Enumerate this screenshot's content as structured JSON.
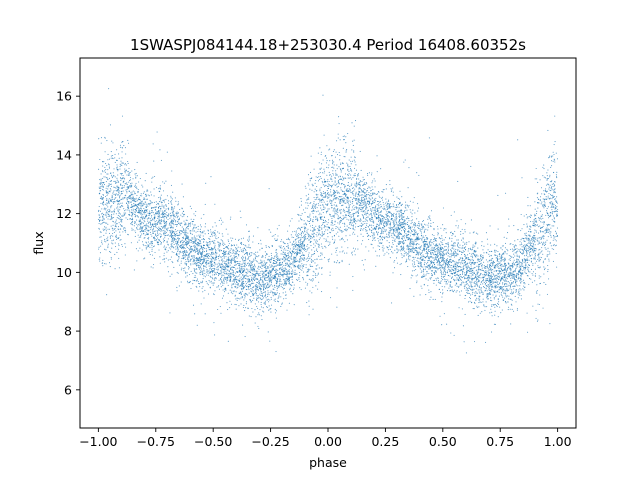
{
  "chart_data": {
    "type": "scatter",
    "title": "1SWASPJ084144.18+253030.4 Period 16408.60352s",
    "xlabel": "phase",
    "ylabel": "flux",
    "xlim": [
      -1.08,
      1.08
    ],
    "ylim": [
      4.7,
      17.3
    ],
    "xticks": [
      -1.0,
      -0.75,
      -0.5,
      -0.25,
      0.0,
      0.25,
      0.5,
      0.75,
      1.0
    ],
    "xtick_labels": [
      "−1.00",
      "−0.75",
      "−0.50",
      "−0.25",
      "0.00",
      "0.25",
      "0.50",
      "0.75",
      "1.00"
    ],
    "yticks": [
      6,
      8,
      10,
      12,
      14,
      16
    ],
    "ytick_labels": [
      "6",
      "8",
      "10",
      "12",
      "14",
      "16"
    ],
    "grid": false,
    "legend": "none",
    "marker_color": "#1f77b4",
    "series": [
      {
        "description_points": [
          {
            "phase": -1.0,
            "flux": 12.4
          },
          {
            "phase": -0.9,
            "flux": 12.5
          },
          {
            "phase": -0.75,
            "flux": 11.7
          },
          {
            "phase": -0.5,
            "flux": 10.4
          },
          {
            "phase": -0.3,
            "flux": 9.8
          },
          {
            "phase": -0.2,
            "flux": 10.0
          },
          {
            "phase": -0.1,
            "flux": 11.0
          },
          {
            "phase": 0.0,
            "flux": 12.4
          },
          {
            "phase": 0.1,
            "flux": 12.5
          },
          {
            "phase": 0.25,
            "flux": 11.7
          },
          {
            "phase": 0.5,
            "flux": 10.4
          },
          {
            "phase": 0.7,
            "flux": 9.8
          },
          {
            "phase": 0.8,
            "flux": 10.0
          },
          {
            "phase": 0.9,
            "flux": 11.0
          },
          {
            "phase": 1.0,
            "flux": 12.4
          }
        ]
      }
    ]
  }
}
